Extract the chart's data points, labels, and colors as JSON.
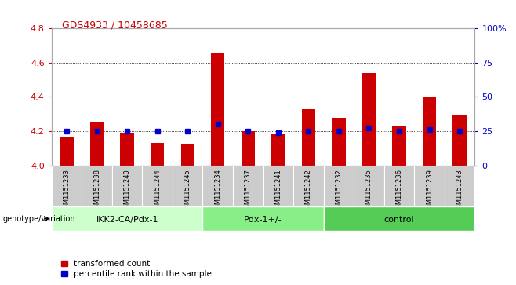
{
  "title": "GDS4933 / 10458685",
  "samples": [
    "GSM1151233",
    "GSM1151238",
    "GSM1151240",
    "GSM1151244",
    "GSM1151245",
    "GSM1151234",
    "GSM1151237",
    "GSM1151241",
    "GSM1151242",
    "GSM1151232",
    "GSM1151235",
    "GSM1151236",
    "GSM1151239",
    "GSM1151243"
  ],
  "red_values": [
    4.17,
    4.25,
    4.19,
    4.13,
    4.12,
    4.66,
    4.2,
    4.18,
    4.33,
    4.28,
    4.54,
    4.23,
    4.4,
    4.29
  ],
  "blue_values_pct": [
    25,
    25,
    25,
    25,
    25,
    30,
    25,
    24,
    25,
    25,
    27,
    25,
    26,
    25
  ],
  "ylim_left": [
    4.0,
    4.8
  ],
  "ylim_right": [
    0,
    100
  ],
  "yticks_left": [
    4.0,
    4.2,
    4.4,
    4.6,
    4.8
  ],
  "yticks_right": [
    0,
    25,
    50,
    75,
    100
  ],
  "ytick_labels_right": [
    "0",
    "25",
    "50",
    "75",
    "100%"
  ],
  "groups": [
    {
      "label": "IKK2-CA/Pdx-1",
      "start": 0,
      "end": 5,
      "color": "#ccffcc"
    },
    {
      "label": "Pdx-1+/-",
      "start": 5,
      "end": 9,
      "color": "#88ee88"
    },
    {
      "label": "control",
      "start": 9,
      "end": 14,
      "color": "#55cc55"
    }
  ],
  "genotype_label": "genotype/variation",
  "legend_red": "transformed count",
  "legend_blue": "percentile rank within the sample",
  "bar_color_red": "#cc0000",
  "bar_color_blue": "#0000cc",
  "bar_width": 0.45,
  "baseline": 4.0,
  "grid_color": "#000000",
  "bg_color": "#ffffff",
  "tick_color_left": "#cc0000",
  "tick_color_right": "#0000cc",
  "sample_bg_color": "#cccccc",
  "title_color": "#cc0000"
}
